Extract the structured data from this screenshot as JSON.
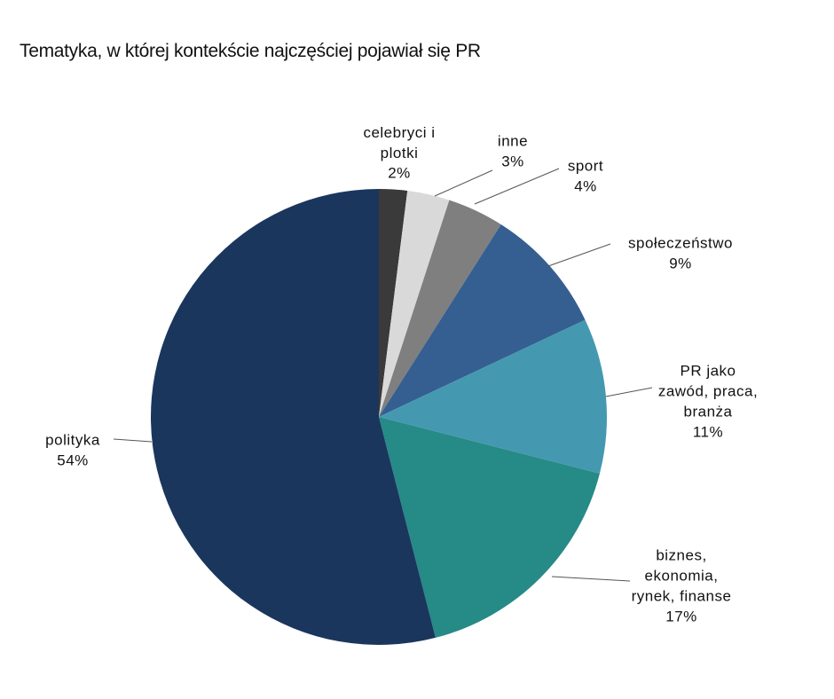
{
  "chart_data": {
    "type": "pie",
    "title": "Tematyka, w której kontekście najczęściej pojawiał się PR",
    "categories": [
      "celebryci i\nplotki",
      "inne",
      "sport",
      "społeczeństwo",
      "PR jako\nzawód, praca,\nbranża",
      "biznes,\nekonomia,\nrynek, finanse",
      "polityka"
    ],
    "values": [
      2,
      3,
      4,
      9,
      11,
      17,
      54
    ],
    "value_labels": [
      "2%",
      "3%",
      "4%",
      "9%",
      "11%",
      "17%",
      "54%"
    ],
    "colors": [
      "#3a3a3a",
      "#d9d9d9",
      "#7f7f7f",
      "#355f91",
      "#4499b0",
      "#268a87",
      "#1a365d"
    ]
  }
}
